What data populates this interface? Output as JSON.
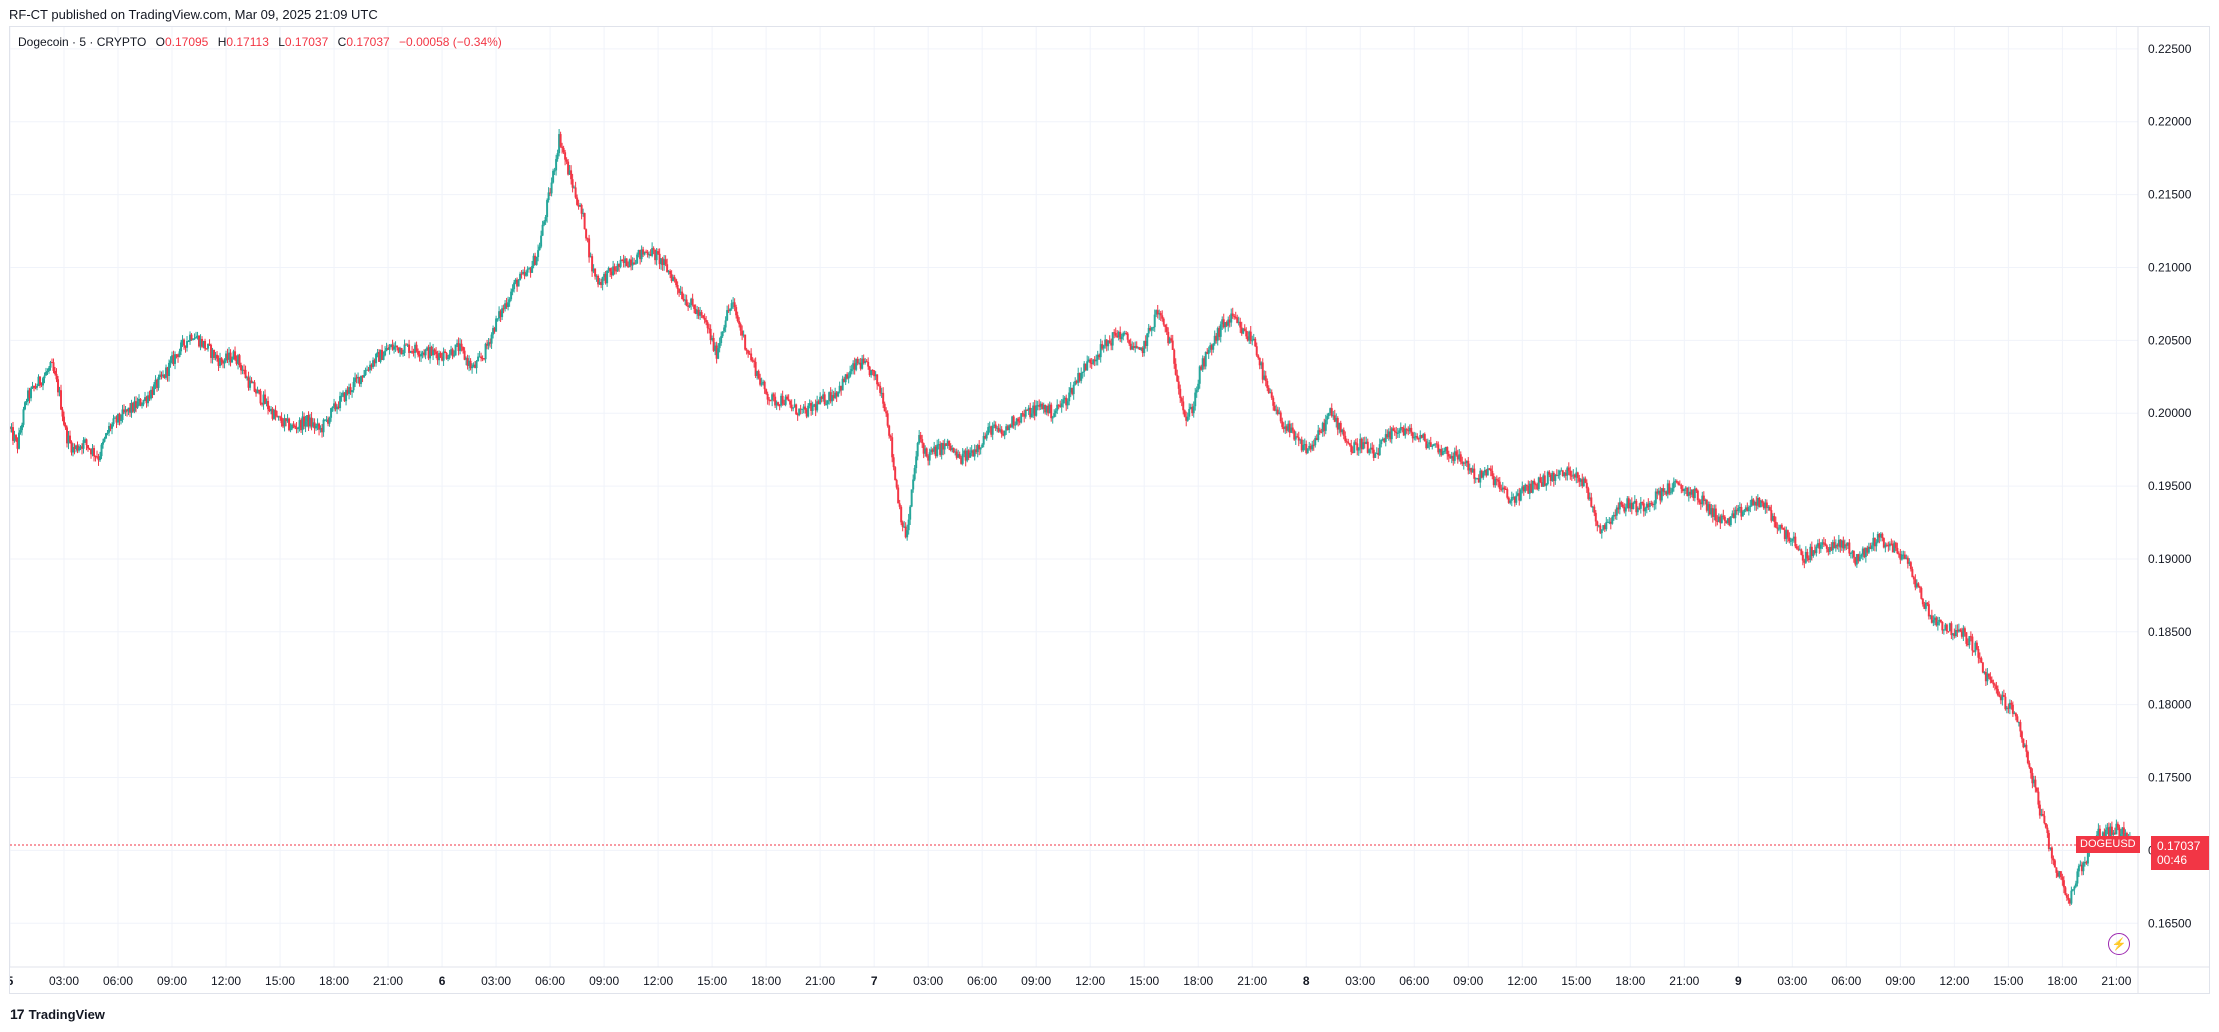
{
  "publish": "RF-CT published on TradingView.com, Mar 09, 2025 21:09 UTC",
  "legend": {
    "symbol": "Dogecoin · 5 · CRYPTO",
    "open_label": "O",
    "open": "0.17095",
    "high_label": "H",
    "high": "0.17113",
    "low_label": "L",
    "low": "0.17037",
    "close_label": "C",
    "close": "0.17037",
    "change": "−0.00058 (−0.34%)"
  },
  "last_price": {
    "symbol": "DOGEUSD",
    "price": "0.17037",
    "countdown": "00:46"
  },
  "footer": {
    "brand": "TradingView",
    "logo": "tradingview-logo"
  },
  "colors": {
    "up": "#26a69a",
    "down": "#f23645",
    "grid": "#f0f3fa",
    "text": "#131722",
    "accent": "#9c27b0"
  },
  "icons": {
    "flash": "lightning-icon"
  },
  "chart_data": {
    "type": "candlestick",
    "interval": "5",
    "grid": true,
    "ylim": [
      0.162,
      0.2265
    ],
    "y_ticks": [
      "0.22500",
      "0.22000",
      "0.21500",
      "0.21000",
      "0.20500",
      "0.20000",
      "0.19500",
      "0.19000",
      "0.18500",
      "0.18000",
      "0.17500",
      "0.17000",
      "0.16500"
    ],
    "x_ticks": [
      "5",
      "03:00",
      "06:00",
      "09:00",
      "12:00",
      "15:00",
      "18:00",
      "21:00",
      "6",
      "03:00",
      "06:00",
      "09:00",
      "12:00",
      "15:00",
      "18:00",
      "21:00",
      "7",
      "03:00",
      "06:00",
      "09:00",
      "12:00",
      "15:00",
      "18:00",
      "21:00",
      "8",
      "03:00",
      "06:00",
      "09:00",
      "12:00",
      "15:00",
      "18:00",
      "21:00",
      "9",
      "03:00",
      "06:00",
      "09:00",
      "12:00",
      "15:00",
      "18:00",
      "21:00"
    ],
    "x_tick_hours": [
      0,
      3,
      6,
      9,
      12,
      15,
      18,
      21,
      24,
      27,
      30,
      33,
      36,
      39,
      42,
      45,
      48,
      51,
      54,
      57,
      60,
      63,
      66,
      69,
      72,
      75,
      78,
      81,
      84,
      87,
      90,
      93,
      96,
      99,
      102,
      105,
      108,
      111,
      114,
      117
    ],
    "x_range_hours": [
      0,
      118.2
    ],
    "price_path": [
      [
        0.0,
        0.199
      ],
      [
        0.5,
        0.1978
      ],
      [
        1.0,
        0.201
      ],
      [
        1.6,
        0.202
      ],
      [
        2.4,
        0.2032
      ],
      [
        2.8,
        0.2015
      ],
      [
        3.2,
        0.1985
      ],
      [
        3.6,
        0.1975
      ],
      [
        4.2,
        0.198
      ],
      [
        5.0,
        0.197
      ],
      [
        5.6,
        0.199
      ],
      [
        6.5,
        0.2
      ],
      [
        7.6,
        0.201
      ],
      [
        8.6,
        0.2025
      ],
      [
        9.3,
        0.204
      ],
      [
        10.2,
        0.2055
      ],
      [
        11.0,
        0.2045
      ],
      [
        11.8,
        0.2035
      ],
      [
        12.6,
        0.204
      ],
      [
        13.4,
        0.202
      ],
      [
        14.2,
        0.2008
      ],
      [
        15.0,
        0.1995
      ],
      [
        15.8,
        0.199
      ],
      [
        16.6,
        0.1995
      ],
      [
        17.3,
        0.1988
      ],
      [
        18.2,
        0.2005
      ],
      [
        19.2,
        0.202
      ],
      [
        20.2,
        0.2035
      ],
      [
        21.2,
        0.2045
      ],
      [
        22.2,
        0.2045
      ],
      [
        23.2,
        0.2042
      ],
      [
        24.2,
        0.204
      ],
      [
        25.0,
        0.2045
      ],
      [
        25.8,
        0.203
      ],
      [
        26.4,
        0.204
      ],
      [
        27.0,
        0.206
      ],
      [
        27.6,
        0.2075
      ],
      [
        28.2,
        0.209
      ],
      [
        28.8,
        0.2095
      ],
      [
        29.4,
        0.211
      ],
      [
        29.8,
        0.2135
      ],
      [
        30.2,
        0.216
      ],
      [
        30.6,
        0.219
      ],
      [
        31.0,
        0.217
      ],
      [
        31.5,
        0.215
      ],
      [
        32.0,
        0.213
      ],
      [
        32.4,
        0.21
      ],
      [
        32.8,
        0.209
      ],
      [
        33.3,
        0.2095
      ],
      [
        33.8,
        0.21
      ],
      [
        34.5,
        0.2105
      ],
      [
        35.0,
        0.2108
      ],
      [
        35.6,
        0.2112
      ],
      [
        36.2,
        0.2105
      ],
      [
        36.8,
        0.2095
      ],
      [
        37.5,
        0.208
      ],
      [
        38.2,
        0.207
      ],
      [
        38.8,
        0.206
      ],
      [
        39.3,
        0.204
      ],
      [
        39.8,
        0.2065
      ],
      [
        40.2,
        0.2075
      ],
      [
        40.6,
        0.206
      ],
      [
        41.0,
        0.2045
      ],
      [
        41.5,
        0.203
      ],
      [
        42.0,
        0.2015
      ],
      [
        42.5,
        0.2008
      ],
      [
        43.0,
        0.201
      ],
      [
        43.6,
        0.2003
      ],
      [
        44.2,
        0.2
      ],
      [
        44.8,
        0.2005
      ],
      [
        45.4,
        0.201
      ],
      [
        46.0,
        0.2015
      ],
      [
        46.6,
        0.2025
      ],
      [
        47.2,
        0.2035
      ],
      [
        47.8,
        0.203
      ],
      [
        48.3,
        0.202
      ],
      [
        48.6,
        0.201
      ],
      [
        48.9,
        0.199
      ],
      [
        49.2,
        0.196
      ],
      [
        49.5,
        0.1935
      ],
      [
        49.8,
        0.1915
      ],
      [
        50.0,
        0.1925
      ],
      [
        50.3,
        0.196
      ],
      [
        50.6,
        0.1985
      ],
      [
        51.0,
        0.197
      ],
      [
        51.6,
        0.1975
      ],
      [
        52.2,
        0.1978
      ],
      [
        52.8,
        0.1968
      ],
      [
        53.4,
        0.1972
      ],
      [
        54.0,
        0.198
      ],
      [
        54.6,
        0.199
      ],
      [
        55.2,
        0.1985
      ],
      [
        55.8,
        0.1995
      ],
      [
        56.6,
        0.2
      ],
      [
        57.4,
        0.2005
      ],
      [
        58.0,
        0.2
      ],
      [
        58.8,
        0.201
      ],
      [
        59.4,
        0.2025
      ],
      [
        60.0,
        0.2035
      ],
      [
        60.8,
        0.2045
      ],
      [
        61.6,
        0.2055
      ],
      [
        62.2,
        0.205
      ],
      [
        62.8,
        0.204
      ],
      [
        63.2,
        0.205
      ],
      [
        63.8,
        0.207
      ],
      [
        64.2,
        0.206
      ],
      [
        64.6,
        0.2045
      ],
      [
        65.0,
        0.202
      ],
      [
        65.4,
        0.1995
      ],
      [
        65.8,
        0.2005
      ],
      [
        66.2,
        0.203
      ],
      [
        66.8,
        0.2045
      ],
      [
        67.4,
        0.206
      ],
      [
        68.0,
        0.2065
      ],
      [
        68.6,
        0.2055
      ],
      [
        69.2,
        0.205
      ],
      [
        69.8,
        0.202
      ],
      [
        70.4,
        0.2
      ],
      [
        71.0,
        0.199
      ],
      [
        71.6,
        0.198
      ],
      [
        72.2,
        0.1975
      ],
      [
        72.8,
        0.1985
      ],
      [
        73.4,
        0.2
      ],
      [
        74.0,
        0.199
      ],
      [
        74.6,
        0.1975
      ],
      [
        75.2,
        0.198
      ],
      [
        75.8,
        0.197
      ],
      [
        76.4,
        0.198
      ],
      [
        77.2,
        0.199
      ],
      [
        78.0,
        0.1985
      ],
      [
        78.8,
        0.198
      ],
      [
        79.6,
        0.1975
      ],
      [
        80.4,
        0.197
      ],
      [
        81.0,
        0.1965
      ],
      [
        81.6,
        0.1955
      ],
      [
        82.2,
        0.196
      ],
      [
        82.8,
        0.195
      ],
      [
        83.4,
        0.194
      ],
      [
        84.0,
        0.1945
      ],
      [
        84.6,
        0.195
      ],
      [
        85.4,
        0.1955
      ],
      [
        86.2,
        0.1958
      ],
      [
        87.0,
        0.196
      ],
      [
        87.6,
        0.195
      ],
      [
        88.0,
        0.1935
      ],
      [
        88.4,
        0.192
      ],
      [
        88.8,
        0.1925
      ],
      [
        89.4,
        0.1935
      ],
      [
        90.0,
        0.1938
      ],
      [
        90.6,
        0.1935
      ],
      [
        91.2,
        0.194
      ],
      [
        91.8,
        0.1945
      ],
      [
        92.4,
        0.195
      ],
      [
        93.0,
        0.1948
      ],
      [
        93.6,
        0.1945
      ],
      [
        94.2,
        0.1938
      ],
      [
        94.8,
        0.193
      ],
      [
        95.4,
        0.1925
      ],
      [
        96.0,
        0.193
      ],
      [
        96.6,
        0.1935
      ],
      [
        97.2,
        0.194
      ],
      [
        97.8,
        0.1932
      ],
      [
        98.4,
        0.192
      ],
      [
        99.0,
        0.1915
      ],
      [
        99.6,
        0.19
      ],
      [
        100.2,
        0.1905
      ],
      [
        100.8,
        0.191
      ],
      [
        101.4,
        0.1908
      ],
      [
        102.0,
        0.191
      ],
      [
        102.6,
        0.19
      ],
      [
        103.2,
        0.1905
      ],
      [
        103.8,
        0.1915
      ],
      [
        104.4,
        0.191
      ],
      [
        105.0,
        0.1905
      ],
      [
        105.6,
        0.1895
      ],
      [
        106.2,
        0.1875
      ],
      [
        106.8,
        0.186
      ],
      [
        107.4,
        0.1855
      ],
      [
        108.0,
        0.185
      ],
      [
        108.6,
        0.1848
      ],
      [
        109.2,
        0.184
      ],
      [
        109.8,
        0.182
      ],
      [
        110.4,
        0.181
      ],
      [
        111.0,
        0.18
      ],
      [
        111.6,
        0.179
      ],
      [
        112.2,
        0.176
      ],
      [
        112.6,
        0.174
      ],
      [
        113.0,
        0.172
      ],
      [
        113.4,
        0.17
      ],
      [
        113.8,
        0.1685
      ],
      [
        114.2,
        0.1675
      ],
      [
        114.5,
        0.1665
      ],
      [
        114.8,
        0.168
      ],
      [
        115.2,
        0.169
      ],
      [
        115.6,
        0.17
      ],
      [
        116.0,
        0.171
      ],
      [
        116.5,
        0.1712
      ],
      [
        117.0,
        0.1715
      ],
      [
        117.5,
        0.1712
      ],
      [
        117.9,
        0.1704
      ]
    ],
    "last_close": 0.17037
  }
}
